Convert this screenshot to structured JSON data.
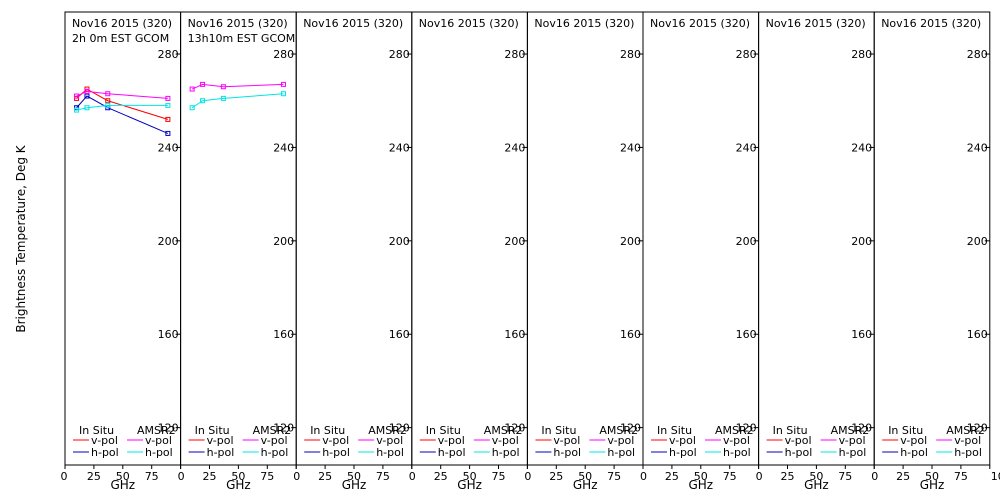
{
  "figure": {
    "ylabel": "Brightness Temperature, Deg K",
    "xlabel": "GHz",
    "legend": {
      "insitu_header": "In Situ",
      "amsr_header": "AMSR2",
      "vpol": "v-pol",
      "hpol": "h-pol"
    },
    "colors": {
      "insitu_v": "#ff0000",
      "insitu_h": "#0000c0",
      "amsr_v": "#ff00ff",
      "amsr_h": "#00e5e5"
    }
  },
  "chart_data": [
    {
      "type": "line",
      "title": "Nov16 2015 (320)",
      "subtitle": "2h 0m EST GCOM",
      "xlabel": "GHz",
      "ylabel": "Brightness Temperature, Deg K",
      "xlim": [
        0,
        100
      ],
      "ylim": [
        104,
        298
      ],
      "xticks": [
        0,
        25,
        50,
        75,
        100
      ],
      "yticks": [
        120,
        160,
        200,
        240,
        280
      ],
      "series": [
        {
          "name": "In Situ v-pol",
          "color": "#ff0000",
          "marker": "square",
          "x": [
            10,
            19,
            37,
            89
          ],
          "y": [
            261,
            265,
            260,
            252
          ]
        },
        {
          "name": "In Situ h-pol",
          "color": "#0000c0",
          "marker": "square",
          "x": [
            10,
            19,
            37,
            89
          ],
          "y": [
            257,
            262,
            257,
            246
          ]
        },
        {
          "name": "AMSR2 v-pol",
          "color": "#ff00ff",
          "marker": "square",
          "x": [
            10,
            19,
            37,
            89
          ],
          "y": [
            262,
            264,
            263,
            261
          ]
        },
        {
          "name": "AMSR2 h-pol",
          "color": "#00e5e5",
          "marker": "square",
          "x": [
            10,
            19,
            37,
            89
          ],
          "y": [
            256,
            257,
            258,
            258
          ]
        }
      ]
    },
    {
      "type": "line",
      "title": "Nov16 2015 (320)",
      "subtitle": "13h10m EST GCOM",
      "xlabel": "GHz",
      "xlim": [
        0,
        100
      ],
      "ylim": [
        104,
        298
      ],
      "xticks": [
        0,
        25,
        50,
        75,
        100
      ],
      "yticks": [
        120,
        160,
        200,
        240,
        280
      ],
      "series": [
        {
          "name": "AMSR2 v-pol",
          "color": "#ff00ff",
          "marker": "square",
          "x": [
            10,
            19,
            37,
            89
          ],
          "y": [
            265,
            267,
            266,
            267
          ]
        },
        {
          "name": "AMSR2 h-pol",
          "color": "#00e5e5",
          "marker": "square",
          "x": [
            10,
            19,
            37,
            89
          ],
          "y": [
            257,
            260,
            261,
            263
          ]
        }
      ]
    },
    {
      "type": "line",
      "title": "Nov16 2015 (320)",
      "subtitle": "",
      "xlabel": "GHz",
      "xlim": [
        0,
        100
      ],
      "ylim": [
        104,
        298
      ],
      "xticks": [
        0,
        25,
        50,
        75,
        100
      ],
      "yticks": [
        120,
        160,
        200,
        240,
        280
      ],
      "series": []
    },
    {
      "type": "line",
      "title": "Nov16 2015 (320)",
      "subtitle": "",
      "xlabel": "GHz",
      "xlim": [
        0,
        100
      ],
      "ylim": [
        104,
        298
      ],
      "xticks": [
        0,
        25,
        50,
        75,
        100
      ],
      "yticks": [
        120,
        160,
        200,
        240,
        280
      ],
      "series": []
    },
    {
      "type": "line",
      "title": "Nov16 2015 (320)",
      "subtitle": "",
      "xlabel": "GHz",
      "xlim": [
        0,
        100
      ],
      "ylim": [
        104,
        298
      ],
      "xticks": [
        0,
        25,
        50,
        75,
        100
      ],
      "yticks": [
        120,
        160,
        200,
        240,
        280
      ],
      "series": []
    },
    {
      "type": "line",
      "title": "Nov16 2015 (320)",
      "subtitle": "",
      "xlabel": "GHz",
      "xlim": [
        0,
        100
      ],
      "ylim": [
        104,
        298
      ],
      "xticks": [
        0,
        25,
        50,
        75,
        100
      ],
      "yticks": [
        120,
        160,
        200,
        240,
        280
      ],
      "series": []
    },
    {
      "type": "line",
      "title": "Nov16 2015 (320)",
      "subtitle": "",
      "xlabel": "GHz",
      "xlim": [
        0,
        100
      ],
      "ylim": [
        104,
        298
      ],
      "xticks": [
        0,
        25,
        50,
        75,
        100
      ],
      "yticks": [
        120,
        160,
        200,
        240,
        280
      ],
      "series": []
    },
    {
      "type": "line",
      "title": "Nov16 2015 (320)",
      "subtitle": "",
      "xlabel": "GHz",
      "xlim": [
        0,
        100
      ],
      "ylim": [
        104,
        298
      ],
      "xticks": [
        0,
        25,
        50,
        75,
        100
      ],
      "yticks": [
        120,
        160,
        200,
        240,
        280
      ],
      "series": []
    }
  ]
}
